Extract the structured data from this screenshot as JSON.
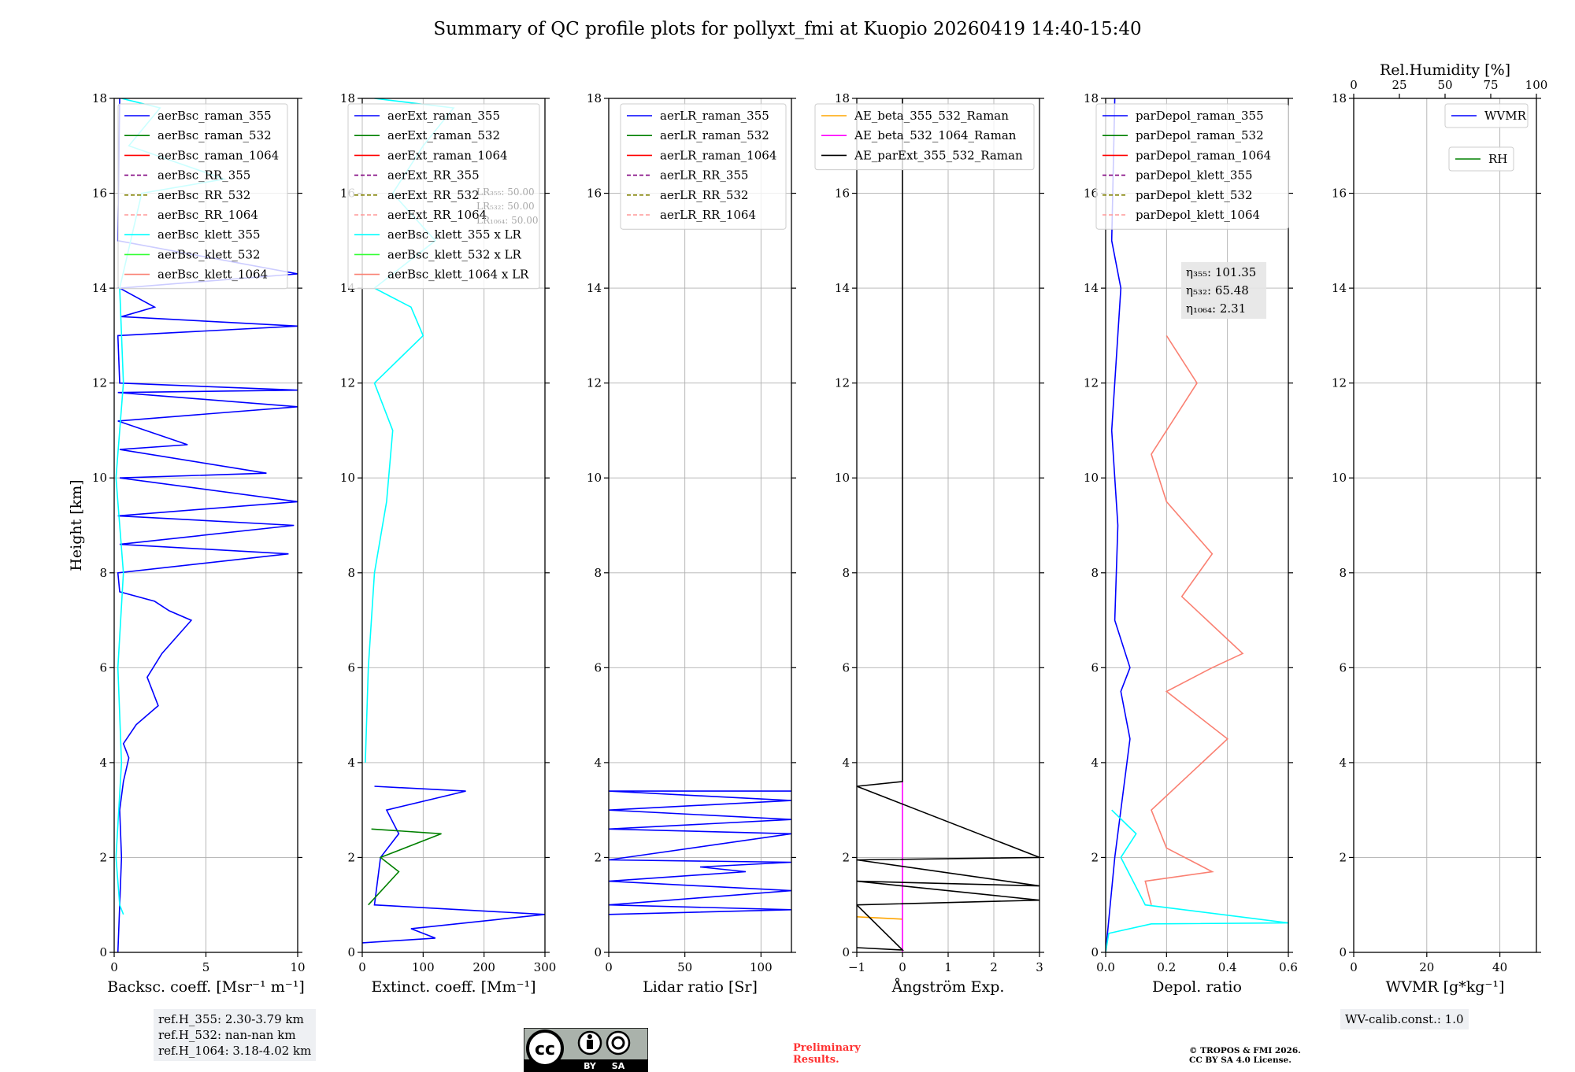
{
  "title": "Summary of QC profile plots for pollyxt_fmi at Kuopio 20260419 14:40-15:40",
  "shared_ylabel": "Height [km]",
  "colors": {
    "raman_355": "#0000ff",
    "raman_532": "#008000",
    "raman_1064": "#ff0000",
    "rr_355": "#800080",
    "rr_532": "#808000",
    "rr_1064": "#ff9999",
    "klett_355": "#00ffff",
    "klett_532": "#33ff33",
    "klett_1064": "#fa8072",
    "ae_355_532": "#ffa500",
    "ae_532_1064": "#ff00ff",
    "ae_parext": "#000000"
  },
  "chart_data": [
    {
      "type": "line",
      "id": "bsc",
      "xlabel": "Backsc. coeff. [Msr⁻¹ m⁻¹]",
      "xlim": [
        0,
        10
      ],
      "ylim": [
        0,
        18
      ],
      "xticks": [
        "0",
        "5",
        "10"
      ],
      "yticks": [
        "0",
        "2",
        "4",
        "6",
        "8",
        "10",
        "12",
        "14",
        "16",
        "18"
      ],
      "legend": [
        "aerBsc_raman_355",
        "aerBsc_raman_532",
        "aerBsc_raman_1064",
        "aerBsc_RR_355",
        "aerBsc_RR_532",
        "aerBsc_RR_1064",
        "aerBsc_klett_355",
        "aerBsc_klett_532",
        "aerBsc_klett_1064"
      ],
      "series": [
        {
          "name": "aerBsc_raman_355",
          "color": "raman_355",
          "points": [
            [
              0.2,
              0
            ],
            [
              0.3,
              1.0
            ],
            [
              0.4,
              2.0
            ],
            [
              0.3,
              3.0
            ],
            [
              0.5,
              3.6
            ],
            [
              0.8,
              4.1
            ],
            [
              0.5,
              4.4
            ],
            [
              1.2,
              4.8
            ],
            [
              2.4,
              5.2
            ],
            [
              1.8,
              5.8
            ],
            [
              2.6,
              6.3
            ],
            [
              4.2,
              7.0
            ],
            [
              3.0,
              7.2
            ],
            [
              2.2,
              7.4
            ],
            [
              0.3,
              7.6
            ],
            [
              0.2,
              8.0
            ],
            [
              9.5,
              8.4
            ],
            [
              0.3,
              8.6
            ],
            [
              9.8,
              9.0
            ],
            [
              0.2,
              9.2
            ],
            [
              10,
              9.5
            ],
            [
              0.3,
              10.0
            ],
            [
              8.3,
              10.1
            ],
            [
              0.3,
              10.6
            ],
            [
              4.0,
              10.7
            ],
            [
              0.2,
              11.2
            ],
            [
              10,
              11.5
            ],
            [
              0.2,
              11.8
            ],
            [
              10,
              11.85
            ],
            [
              0.3,
              12.0
            ],
            [
              0.2,
              13.0
            ],
            [
              10,
              13.2
            ],
            [
              0.4,
              13.4
            ],
            [
              2.2,
              13.6
            ],
            [
              0.3,
              14.0
            ],
            [
              10,
              14.3
            ],
            [
              0.2,
              15.0
            ],
            [
              0.3,
              18.0
            ]
          ]
        },
        {
          "name": "aerBsc_klett_355",
          "color": "klett_355",
          "points": [
            [
              0.5,
              0.8
            ],
            [
              0.3,
              1.0
            ],
            [
              0.1,
              2.0
            ],
            [
              0.4,
              4.0
            ],
            [
              0.2,
              6.0
            ],
            [
              0.5,
              8.0
            ],
            [
              0.1,
              10.0
            ],
            [
              0.5,
              12.0
            ],
            [
              0.3,
              14.0
            ],
            [
              1.5,
              16.0
            ],
            [
              6.0,
              16.3
            ],
            [
              0.8,
              17.0
            ],
            [
              2.5,
              17.8
            ],
            [
              0.4,
              18.0
            ]
          ]
        }
      ]
    },
    {
      "type": "line",
      "id": "ext",
      "xlabel": "Extinct. coeff. [Mm⁻¹]",
      "xlim": [
        0,
        300
      ],
      "ylim": [
        0,
        18
      ],
      "xticks": [
        "0",
        "100",
        "200",
        "300"
      ],
      "yticks": [
        "0",
        "2",
        "4",
        "6",
        "8",
        "10",
        "12",
        "14",
        "16",
        "18"
      ],
      "legend": [
        "aerExt_raman_355",
        "aerExt_raman_532",
        "aerExt_raman_1064",
        "aerExt_RR_355",
        "aerExt_RR_532",
        "aerExt_RR_1064",
        "aerBsc_klett_355 x LR",
        "aerBsc_klett_532 x LR",
        "aerBsc_klett_1064 x LR"
      ],
      "lr_labels": [
        "LR₃₅₅: 50.00",
        "LR₅₃₂: 50.00",
        "LR₁₀₆₄: 50.00"
      ],
      "series": [
        {
          "name": "aerExt_raman_355",
          "color": "raman_355",
          "points": [
            [
              0,
              0.2
            ],
            [
              120,
              0.3
            ],
            [
              80,
              0.5
            ],
            [
              300,
              0.8
            ],
            [
              20,
              1.0
            ],
            [
              30,
              2.0
            ],
            [
              60,
              2.5
            ],
            [
              40,
              3.0
            ],
            [
              170,
              3.4
            ],
            [
              20,
              3.5
            ]
          ]
        },
        {
          "name": "aerExt_raman_532",
          "color": "raman_532",
          "points": [
            [
              10,
              1.0
            ],
            [
              60,
              1.7
            ],
            [
              30,
              2.0
            ],
            [
              130,
              2.5
            ],
            [
              15,
              2.6
            ]
          ]
        },
        {
          "name": "aerBsc_klett_355 x LR",
          "color": "klett_355",
          "points": [
            [
              5,
              4.0
            ],
            [
              10,
              6.0
            ],
            [
              20,
              8.0
            ],
            [
              40,
              9.5
            ],
            [
              50,
              11.0
            ],
            [
              20,
              12.0
            ],
            [
              100,
              13.0
            ],
            [
              80,
              13.6
            ],
            [
              20,
              14.0
            ],
            [
              120,
              15.0
            ],
            [
              50,
              16.0
            ],
            [
              100,
              17.0
            ],
            [
              150,
              17.8
            ],
            [
              20,
              18.0
            ]
          ]
        }
      ]
    },
    {
      "type": "line",
      "id": "lr",
      "xlabel": "Lidar ratio [Sr]",
      "xlim": [
        0,
        120
      ],
      "ylim": [
        0,
        18
      ],
      "xticks": [
        "0",
        "50",
        "100"
      ],
      "yticks": [
        "0",
        "2",
        "4",
        "6",
        "8",
        "10",
        "12",
        "14",
        "16",
        "18"
      ],
      "legend": [
        "aerLR_raman_355",
        "aerLR_raman_532",
        "aerLR_raman_1064",
        "aerLR_RR_355",
        "aerLR_RR_532",
        "aerLR_RR_1064"
      ],
      "series": [
        {
          "name": "aerLR_raman_355",
          "color": "raman_355",
          "points": [
            [
              0,
              0.8
            ],
            [
              120,
              0.9
            ],
            [
              0,
              1.0
            ],
            [
              120,
              1.3
            ],
            [
              0,
              1.5
            ],
            [
              90,
              1.7
            ],
            [
              60,
              1.8
            ],
            [
              120,
              1.9
            ],
            [
              0,
              1.95
            ],
            [
              120,
              2.5
            ],
            [
              0,
              2.6
            ],
            [
              120,
              2.8
            ],
            [
              0,
              3.0
            ],
            [
              120,
              3.2
            ],
            [
              0,
              3.4
            ],
            [
              120,
              3.4
            ]
          ]
        }
      ]
    },
    {
      "type": "line",
      "id": "ae",
      "xlabel": "Ångström Exp.",
      "xlim": [
        -1,
        3
      ],
      "ylim": [
        0,
        18
      ],
      "xticks": [
        "−1",
        "0",
        "1",
        "2",
        "3"
      ],
      "yticks": [
        "0",
        "2",
        "4",
        "6",
        "8",
        "10",
        "12",
        "14",
        "16",
        "18"
      ],
      "legend": [
        "AE_beta_355_532_Raman",
        "AE_beta_532_1064_Raman",
        "AE_parExt_355_532_Raman"
      ],
      "series": [
        {
          "name": "AE_beta_355_532_Raman",
          "color": "ae_355_532",
          "points": [
            [
              -1,
              0.75
            ],
            [
              0,
              0.7
            ]
          ]
        },
        {
          "name": "AE_beta_532_1064_Raman",
          "color": "ae_532_1064",
          "points": [
            [
              0,
              0
            ],
            [
              0,
              3.6
            ]
          ]
        },
        {
          "name": "AE_parExt_355_532_Raman",
          "color": "ae_parext",
          "points": [
            [
              -1,
              0.1
            ],
            [
              0,
              0.05
            ],
            [
              0,
              0.05
            ],
            [
              -1,
              1.0
            ],
            [
              3,
              1.1
            ],
            [
              -1,
              1.5
            ],
            [
              3,
              1.4
            ],
            [
              -1,
              1.95
            ],
            [
              3,
              2.0
            ],
            [
              -1,
              3.5
            ],
            [
              0,
              3.6
            ],
            [
              0,
              18
            ]
          ]
        }
      ]
    },
    {
      "type": "line",
      "id": "depol",
      "xlabel": "Depol. ratio",
      "xlim": [
        0,
        0.6
      ],
      "ylim": [
        0,
        18
      ],
      "xticks": [
        "0.0",
        "0.2",
        "0.4",
        "0.6"
      ],
      "yticks": [
        "0",
        "2",
        "4",
        "6",
        "8",
        "10",
        "12",
        "14",
        "16",
        "18"
      ],
      "legend": [
        "parDepol_raman_355",
        "parDepol_raman_532",
        "parDepol_raman_1064",
        "parDepol_klett_355",
        "parDepol_klett_532",
        "parDepol_klett_1064"
      ],
      "eta_labels": [
        "η₃₅₅: 101.35",
        "η₅₃₂: 65.48",
        "η₁₀₆₄: 2.31"
      ],
      "series": [
        {
          "name": "parDepol_raman_355",
          "color": "raman_355",
          "points": [
            [
              0.0,
              0
            ],
            [
              0.03,
              2.0
            ],
            [
              0.05,
              3.0
            ],
            [
              0.08,
              4.5
            ],
            [
              0.05,
              5.5
            ],
            [
              0.08,
              6.0
            ],
            [
              0.03,
              7.0
            ],
            [
              0.04,
              9.0
            ],
            [
              0.02,
              11.0
            ],
            [
              0.05,
              14.0
            ],
            [
              0.02,
              15.0
            ],
            [
              0.03,
              18.0
            ]
          ]
        },
        {
          "name": "parDepol_klett_355",
          "color": "klett_355",
          "points": [
            [
              0.0,
              0
            ],
            [
              0.01,
              0.4
            ],
            [
              0.15,
              0.6
            ],
            [
              0.6,
              0.62
            ],
            [
              0.13,
              1.0
            ],
            [
              0.05,
              2.0
            ],
            [
              0.1,
              2.5
            ],
            [
              0.02,
              3.0
            ]
          ]
        },
        {
          "name": "parDepol_klett_1064",
          "color": "klett_1064",
          "points": [
            [
              0.15,
              1.0
            ],
            [
              0.13,
              1.5
            ],
            [
              0.35,
              1.7
            ],
            [
              0.2,
              2.2
            ],
            [
              0.15,
              3.0
            ],
            [
              0.4,
              4.5
            ],
            [
              0.2,
              5.5
            ],
            [
              0.35,
              6.0
            ],
            [
              0.45,
              6.3
            ],
            [
              0.25,
              7.5
            ],
            [
              0.35,
              8.4
            ],
            [
              0.2,
              9.5
            ],
            [
              0.15,
              10.5
            ],
            [
              0.3,
              12.0
            ],
            [
              0.2,
              13.0
            ]
          ]
        }
      ]
    },
    {
      "type": "line",
      "id": "wv",
      "xlabel": "WVMR [g*kg⁻¹]",
      "top_xlabel": "Rel.Humidity [%]",
      "xlim": [
        0,
        50
      ],
      "top_xlim": [
        0,
        100
      ],
      "ylim": [
        0,
        18
      ],
      "xticks": [
        "0",
        "20",
        "40"
      ],
      "top_xticks": [
        "0",
        "25",
        "50",
        "75",
        "100"
      ],
      "yticks": [
        "0",
        "2",
        "4",
        "6",
        "8",
        "10",
        "12",
        "14",
        "16",
        "18"
      ],
      "legend": [
        "WVMR",
        "RH"
      ],
      "series": []
    }
  ],
  "infoboxes": {
    "ref_h": [
      "ref.H_355: 2.30-3.79 km",
      "ref.H_532: nan-nan km",
      "ref.H_1064: 3.18-4.02 km"
    ],
    "wv_calib": "WV-calib.const.: 1.0"
  },
  "footer": {
    "cc_labels": [
      "cc",
      "BY",
      "SA"
    ],
    "preliminary": [
      "Preliminary",
      "Results."
    ],
    "copyright": [
      "© TROPOS & FMI 2026.",
      "CC BY SA 4.0 License."
    ]
  }
}
